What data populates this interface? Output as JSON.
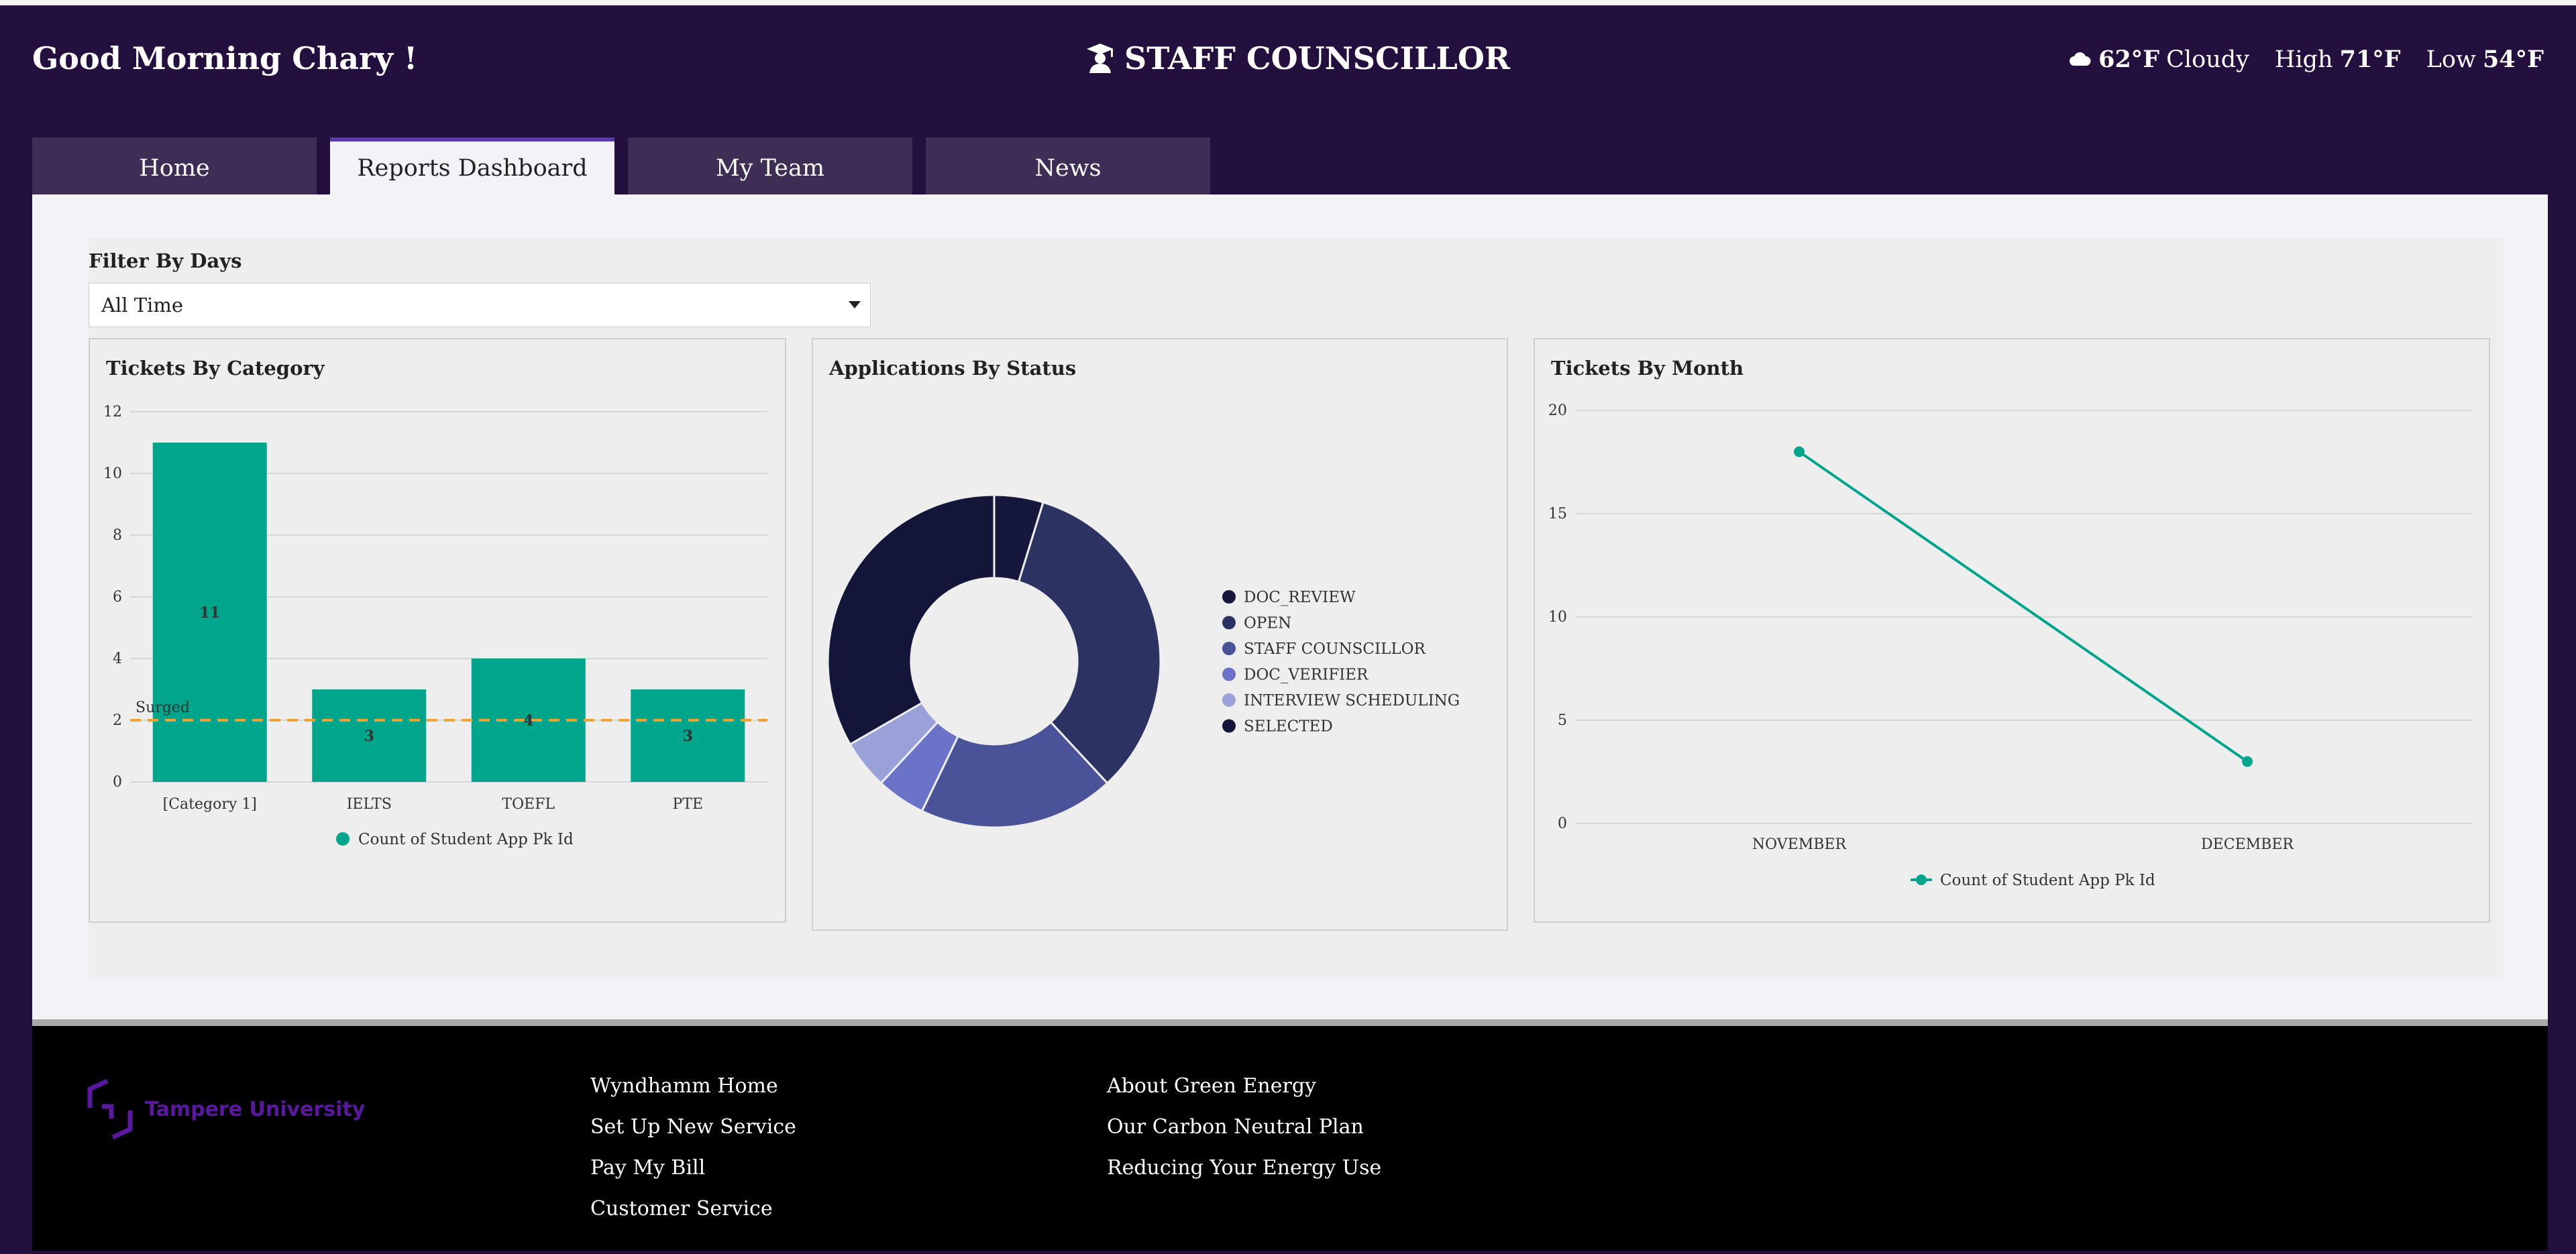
{
  "header": {
    "greeting": "Good Morning Chary !",
    "role": "STAFF COUNSCILLOR",
    "role_icon": "graduate-icon",
    "weather": {
      "icon": "cloud-icon",
      "temp": "62°F",
      "condition": "Cloudy",
      "high_label": "High",
      "high": "71°F",
      "low_label": "Low",
      "low": "54°F"
    }
  },
  "tabs": [
    {
      "label": "Home",
      "active": false
    },
    {
      "label": "Reports Dashboard",
      "active": true
    },
    {
      "label": "My Team",
      "active": false
    },
    {
      "label": "News",
      "active": false
    }
  ],
  "filter": {
    "label": "Filter By Days",
    "selected": "All Time"
  },
  "colors": {
    "accent": "#00a68c",
    "header_bg": "#24103e",
    "threshold": "#f0a22e"
  },
  "chart_data": [
    {
      "type": "bar",
      "title": "Tickets By Category",
      "categories": [
        "[Category 1]",
        "IELTS",
        "TOEFL",
        "PTE"
      ],
      "values": [
        11,
        3,
        4,
        3
      ],
      "series": [
        {
          "name": "Count of Student App Pk Id",
          "values": [
            11,
            3,
            4,
            3
          ]
        }
      ],
      "yticks": [
        "0",
        "2",
        "4",
        "6",
        "8",
        "10",
        "12"
      ],
      "ylim": [
        0,
        12
      ],
      "grid": true,
      "reference_line": {
        "label": "Surged",
        "value": 2
      },
      "legend": "bottom"
    },
    {
      "type": "pie",
      "title": "Applications By Status",
      "labels": [
        "DOC_REVIEW",
        "OPEN",
        "STAFF COUNSCILLOR",
        "DOC_VERIFIER",
        "INTERVIEW SCHEDULING",
        "SELECTED"
      ],
      "values": [
        1,
        7,
        4,
        1,
        1,
        7
      ],
      "colors": [
        "#16173d",
        "#2c3262",
        "#4a5298",
        "#6b73c8",
        "#9aa0d8",
        "#141639"
      ],
      "donut": true,
      "legend": "right"
    },
    {
      "type": "line",
      "title": "Tickets By Month",
      "categories": [
        "NOVEMBER",
        "DECEMBER"
      ],
      "series": [
        {
          "name": "Count of Student App Pk Id",
          "values": [
            18,
            3
          ]
        }
      ],
      "yticks": [
        "0",
        "5",
        "10",
        "15",
        "20"
      ],
      "ylim": [
        0,
        20
      ],
      "grid": true,
      "legend": "bottom"
    }
  ],
  "footer": {
    "logo_text": "Tampere University",
    "col1": [
      "Wyndhamm Home",
      "Set Up New Service",
      "Pay My Bill",
      "Customer Service"
    ],
    "col2": [
      "About Green Energy",
      "Our Carbon Neutral Plan",
      "Reducing Your Energy Use"
    ]
  }
}
